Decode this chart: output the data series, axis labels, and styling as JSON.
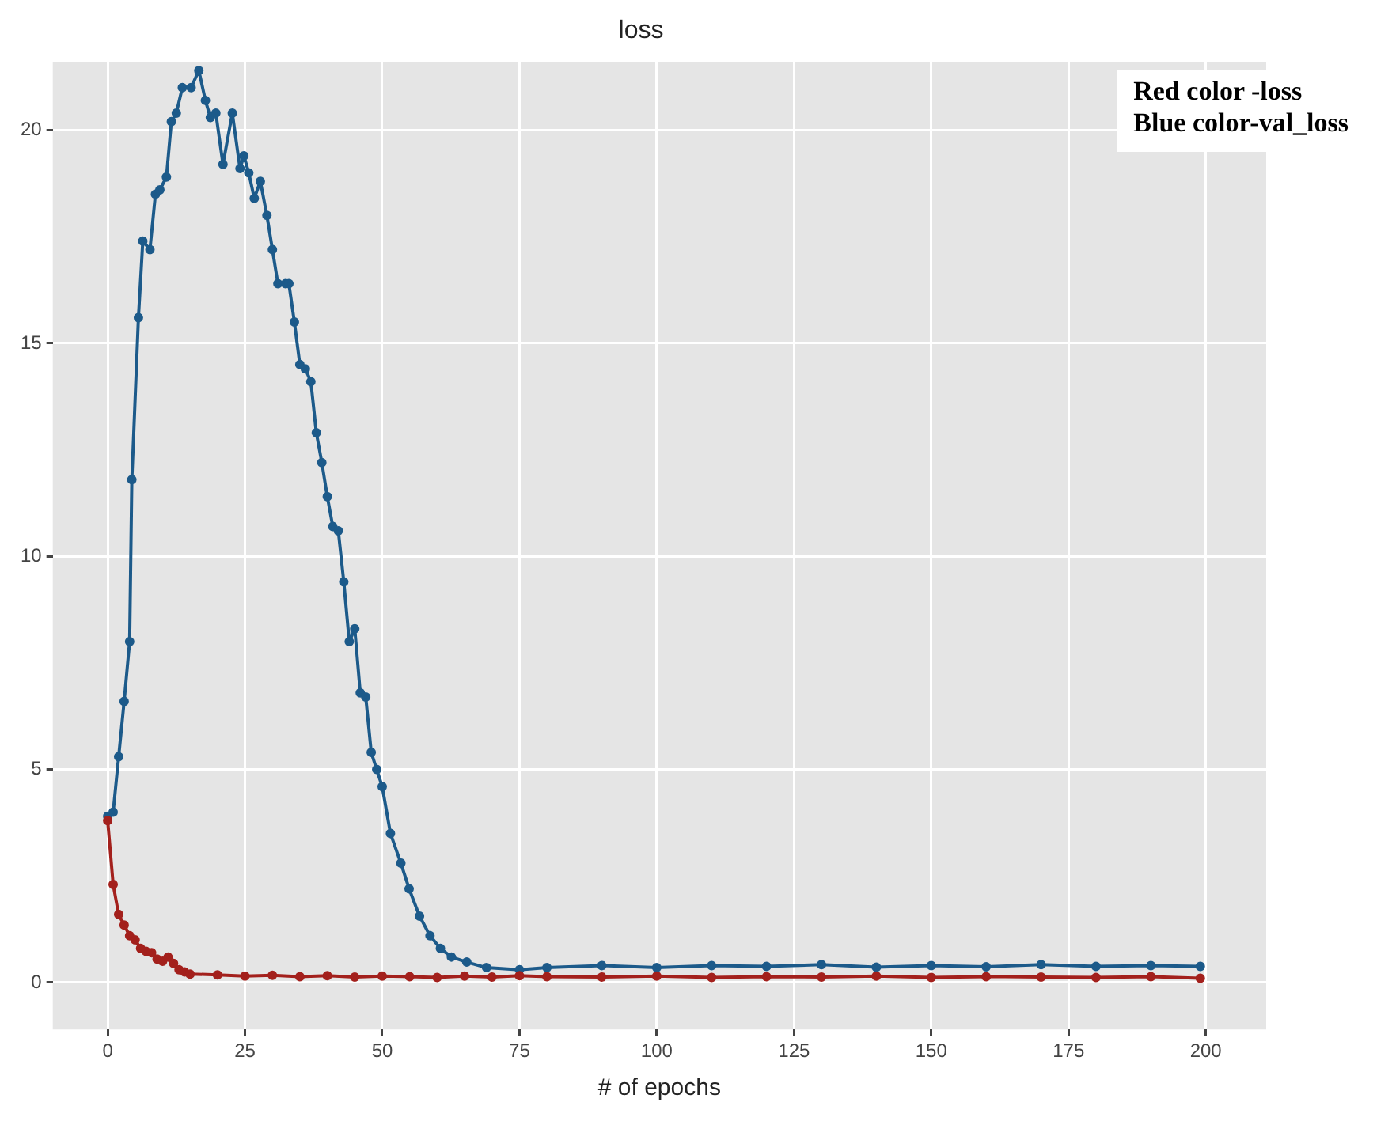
{
  "chart_data": {
    "type": "line",
    "title": "loss",
    "xlabel": "# of epochs",
    "xlim": [
      -10,
      211
    ],
    "ylim": [
      -1.1,
      21.6
    ],
    "xticks": [
      0,
      25,
      50,
      75,
      100,
      125,
      150,
      175,
      200
    ],
    "yticks": [
      0,
      5,
      10,
      15,
      20
    ],
    "grid": true,
    "marker": "circle",
    "line_style": "solid",
    "annotations": [
      "Red color -loss\nBlue color-val_loss"
    ],
    "series": [
      {
        "color": "#a3201c",
        "x": [
          0,
          1,
          2,
          3,
          4,
          5,
          6,
          7,
          8,
          9,
          10,
          11,
          12,
          13,
          14,
          15,
          20,
          25,
          30,
          35,
          40,
          45,
          50,
          55,
          60,
          65,
          70,
          75,
          80,
          90,
          100,
          110,
          120,
          130,
          140,
          150,
          160,
          170,
          180,
          190,
          199
        ],
        "values": [
          3.8,
          2.3,
          1.6,
          1.35,
          1.1,
          1.0,
          0.8,
          0.73,
          0.7,
          0.55,
          0.5,
          0.6,
          0.45,
          0.3,
          0.25,
          0.2,
          0.18,
          0.15,
          0.17,
          0.14,
          0.16,
          0.13,
          0.15,
          0.14,
          0.12,
          0.15,
          0.13,
          0.16,
          0.14,
          0.13,
          0.15,
          0.12,
          0.14,
          0.13,
          0.15,
          0.12,
          0.14,
          0.13,
          0.12,
          0.14,
          0.1
        ]
      },
      {
        "color": "#1c5a8a",
        "x": [
          0,
          1,
          2,
          3,
          4,
          4.4,
          5.6,
          6.4,
          7.7,
          8.7,
          9.5,
          10.7,
          11.6,
          12.5,
          13.6,
          15.2,
          16.6,
          17.8,
          18.7,
          19.7,
          21,
          22.7,
          24.1,
          24.8,
          25.7,
          26.7,
          27.8,
          29,
          30,
          31,
          32.4,
          33,
          34,
          35,
          36,
          37,
          38,
          39,
          40,
          41,
          42,
          43,
          44,
          45,
          46,
          47,
          48,
          49,
          50,
          51.5,
          53.4,
          54.9,
          56.8,
          58.7,
          60.6,
          62.6,
          65.4,
          69,
          75,
          80,
          90,
          100,
          110,
          120,
          130,
          140,
          150,
          160,
          170,
          180,
          190,
          199
        ],
        "values": [
          3.9,
          4.0,
          5.3,
          6.6,
          8.0,
          11.8,
          15.6,
          17.4,
          17.2,
          18.5,
          18.6,
          18.9,
          20.2,
          20.4,
          21.0,
          21.0,
          21.4,
          20.7,
          20.3,
          20.4,
          19.2,
          20.4,
          19.1,
          19.4,
          19.0,
          18.4,
          18.8,
          18.0,
          17.2,
          16.4,
          16.4,
          16.4,
          15.5,
          14.5,
          14.4,
          14.1,
          12.9,
          12.2,
          11.4,
          10.7,
          10.6,
          9.4,
          8.0,
          8.3,
          6.8,
          6.7,
          5.4,
          5.0,
          4.6,
          3.5,
          2.8,
          2.2,
          1.56,
          1.1,
          0.8,
          0.6,
          0.48,
          0.35,
          0.3,
          0.35,
          0.4,
          0.35,
          0.4,
          0.38,
          0.42,
          0.36,
          0.4,
          0.37,
          0.42,
          0.38,
          0.4,
          0.38
        ]
      }
    ]
  }
}
